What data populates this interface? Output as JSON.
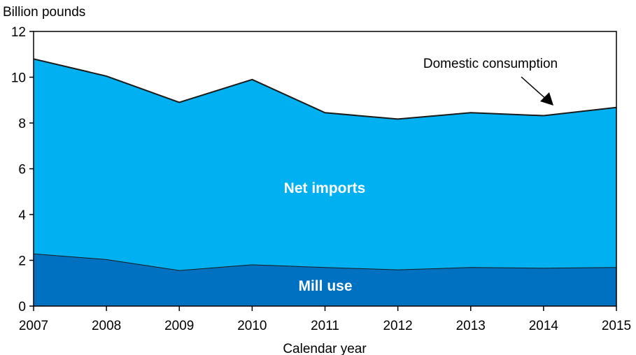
{
  "chart_data": {
    "type": "area",
    "stacked": true,
    "ylabel": "Billion pounds",
    "xlabel": "Calendar year",
    "ylim": [
      0,
      12
    ],
    "yticks": [
      0,
      2,
      4,
      6,
      8,
      10,
      12
    ],
    "x": [
      "2007",
      "2008",
      "2009",
      "2010",
      "2011",
      "2012",
      "2013",
      "2014",
      "2015"
    ],
    "series": [
      {
        "name": "Mill use",
        "values": [
          2.3,
          2.05,
          1.57,
          1.82,
          1.7,
          1.6,
          1.7,
          1.67,
          1.7
        ],
        "color": "#0070c0"
      },
      {
        "name": "Net imports",
        "values": [
          8.5,
          8.0,
          7.33,
          8.08,
          6.75,
          6.57,
          6.75,
          6.65,
          6.98
        ],
        "color": "#00b0f0"
      }
    ],
    "totals": [
      10.8,
      10.05,
      8.9,
      9.9,
      8.45,
      8.17,
      8.45,
      8.32,
      8.68
    ],
    "annotations": [
      {
        "text": "Domestic consumption",
        "arrow": true
      }
    ],
    "grid": false,
    "legend": "none"
  }
}
